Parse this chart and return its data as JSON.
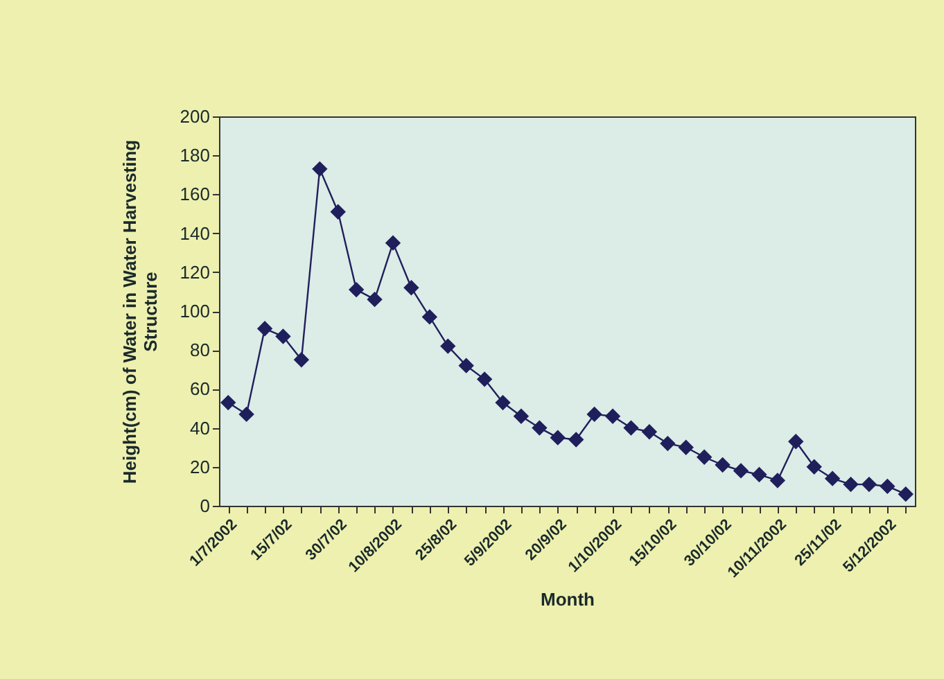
{
  "chart_data": {
    "type": "line",
    "xlabel": "Month",
    "ylabel": "Height(cm) of Water in Water Harvesting Structure",
    "categories": [
      "1/7/2002",
      null,
      null,
      "15/7/02",
      null,
      null,
      "30/7/02",
      null,
      null,
      "10/8/2002",
      null,
      null,
      "25/8/02",
      null,
      null,
      "5/9/2002",
      null,
      null,
      "20/9/02",
      null,
      null,
      "1/10/2002",
      null,
      null,
      "15/10/02",
      null,
      null,
      "30/10/02",
      null,
      null,
      "10/11/2002",
      null,
      null,
      "25/11/02",
      null,
      null,
      "5/12/2002",
      null
    ],
    "series": [
      {
        "color": "#1f1f5c",
        "values": [
          53,
          47,
          91,
          87,
          75,
          173,
          151,
          111,
          106,
          135,
          112,
          97,
          82,
          72,
          65,
          53,
          46,
          40,
          35,
          34,
          47,
          46,
          40,
          38,
          32,
          30,
          25,
          21,
          18,
          16,
          13,
          33,
          20,
          14,
          11,
          11,
          10,
          6
        ]
      }
    ],
    "ylim": [
      0,
      200
    ],
    "yticks": [
      0,
      20,
      40,
      60,
      80,
      100,
      120,
      140,
      160,
      180,
      200
    ],
    "grid": false,
    "marker": "diamond",
    "line_style": "solid"
  }
}
